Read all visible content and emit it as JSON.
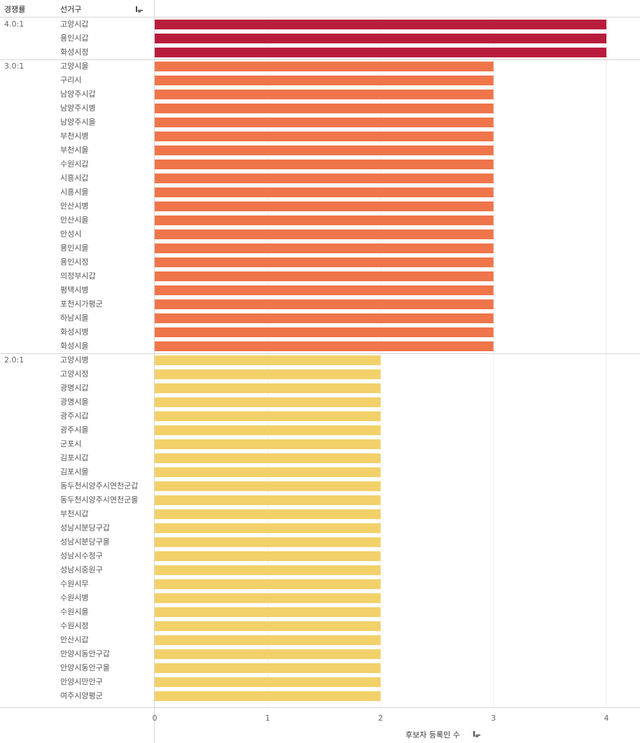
{
  "headers": {
    "ratio": "경쟁률",
    "district": "선거구"
  },
  "icons": {
    "header_sort": "sort-descending-icon",
    "axis_sort": "sort-descending-icon"
  },
  "chart_data": {
    "type": "bar",
    "orientation": "horizontal",
    "xlabel": "후보자 등록인 수",
    "xlim": [
      0,
      4
    ],
    "xticks": [
      0,
      1,
      2,
      3,
      4
    ],
    "grid": true,
    "groups": [
      {
        "label": "4.0:1",
        "color": "#b91d3e",
        "categories": [
          "고양시갑",
          "용인시갑",
          "화성시정"
        ],
        "values": [
          4,
          4,
          4
        ]
      },
      {
        "label": "3.0:1",
        "color": "#ef754b",
        "categories": [
          "고양시을",
          "구리시",
          "남양주시갑",
          "남양주시병",
          "남양주시을",
          "부천시병",
          "부천시을",
          "수원시갑",
          "시흥시갑",
          "시흥시을",
          "안산시병",
          "안산시을",
          "안성시",
          "용인시을",
          "용인시정",
          "의정부시갑",
          "평택시병",
          "포천시가평군",
          "하남시을",
          "화성시병",
          "화성시을"
        ],
        "values": [
          3,
          3,
          3,
          3,
          3,
          3,
          3,
          3,
          3,
          3,
          3,
          3,
          3,
          3,
          3,
          3,
          3,
          3,
          3,
          3,
          3
        ]
      },
      {
        "label": "2.0:1",
        "color": "#f2d16a",
        "categories": [
          "고양시병",
          "고양시정",
          "광명시갑",
          "광명시을",
          "광주시갑",
          "광주시을",
          "군포시",
          "김포시갑",
          "김포시을",
          "동두천시양주시연천군갑",
          "동두천시양주시연천군을",
          "부천시갑",
          "성남시분당구갑",
          "성남시분당구을",
          "성남시수정구",
          "성남시중원구",
          "수원시무",
          "수원시병",
          "수원시을",
          "수원시정",
          "안산시갑",
          "안양시동안구갑",
          "안양시동안구을",
          "안양시만안구",
          "여주시양평군"
        ],
        "values": [
          2,
          2,
          2,
          2,
          2,
          2,
          2,
          2,
          2,
          2,
          2,
          2,
          2,
          2,
          2,
          2,
          2,
          2,
          2,
          2,
          2,
          2,
          2,
          2,
          2
        ]
      }
    ]
  }
}
